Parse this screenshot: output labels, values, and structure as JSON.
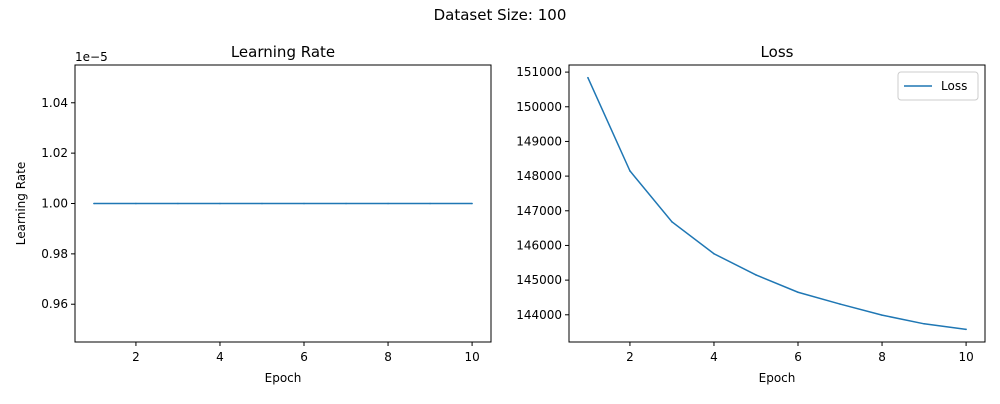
{
  "figure": {
    "suptitle": "Dataset Size: 100"
  },
  "chart_data": [
    {
      "type": "line",
      "title": "Learning Rate",
      "xlabel": "Epoch",
      "ylabel": "Learning Rate",
      "offset_text": "1e−5",
      "x": [
        1,
        2,
        3,
        4,
        5,
        6,
        7,
        8,
        9,
        10
      ],
      "series": [
        {
          "values": [
            1.0,
            1.0,
            1.0,
            1.0,
            1.0,
            1.0,
            1.0,
            1.0,
            1.0,
            1.0
          ],
          "color": "#1f77b4"
        }
      ],
      "xlim": [
        0.55,
        10.45
      ],
      "ylim": [
        0.945,
        1.055
      ],
      "xticks": [
        2,
        4,
        6,
        8,
        10
      ],
      "xtick_labels": [
        "2",
        "4",
        "6",
        "8",
        "10"
      ],
      "yticks": [
        0.96,
        0.98,
        1.0,
        1.02,
        1.04
      ],
      "ytick_labels": [
        "0.96",
        "0.98",
        "1.00",
        "1.02",
        "1.04"
      ],
      "grid": false,
      "legend": null
    },
    {
      "type": "line",
      "title": "Loss",
      "xlabel": "Epoch",
      "ylabel": "",
      "x": [
        1,
        2,
        3,
        4,
        5,
        6,
        7,
        8,
        9,
        10
      ],
      "series": [
        {
          "name": "Loss",
          "values": [
            150840,
            148150,
            146680,
            145760,
            145150,
            144650,
            144310,
            143990,
            143740,
            143580
          ],
          "color": "#1f77b4"
        }
      ],
      "xlim": [
        0.55,
        10.45
      ],
      "ylim": [
        143215,
        151205
      ],
      "xticks": [
        2,
        4,
        6,
        8,
        10
      ],
      "xtick_labels": [
        "2",
        "4",
        "6",
        "8",
        "10"
      ],
      "yticks": [
        144000,
        145000,
        146000,
        147000,
        148000,
        149000,
        150000,
        151000
      ],
      "ytick_labels": [
        "144000",
        "145000",
        "146000",
        "147000",
        "148000",
        "149000",
        "150000",
        "151000"
      ],
      "grid": false,
      "legend": "top-right"
    }
  ]
}
